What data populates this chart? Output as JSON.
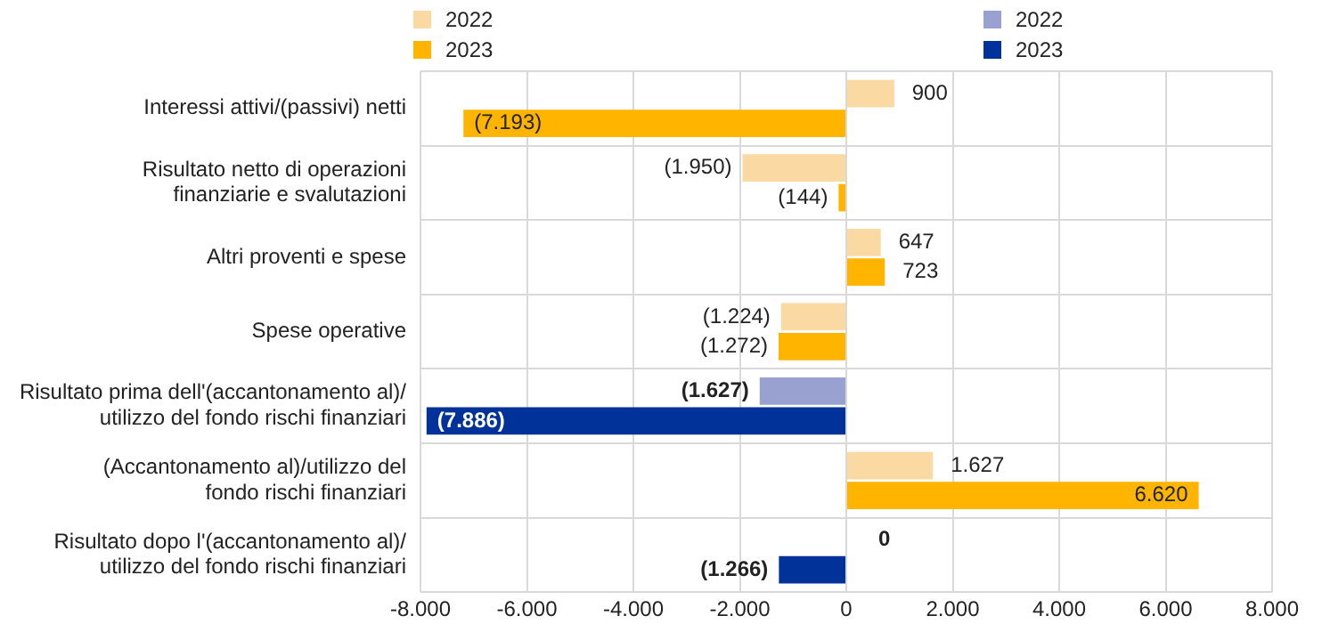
{
  "chart_data": {
    "type": "bar",
    "orientation": "horizontal",
    "legend": "top",
    "grid": true,
    "categories": [
      "Interessi attivi/(passivi) netti",
      "Risultato netto di operazioni\nfinanziarie e svalutazioni",
      "Altri proventi e spese",
      "Spese operative",
      "Risultato prima dell'(accantonamento al)/\nutilizzo del fondo rischi finanziari",
      "(Accantonamento al)/utilizzo del\nfondo rischi finanziari",
      "Risultato dopo l'(accantonamento al)/\nutilizzo del fondo rischi finanziari"
    ],
    "series": [
      {
        "name": "2022",
        "color": "#fbd9a3",
        "values": [
          900,
          -1950,
          647,
          -1224,
          null,
          1627,
          null
        ],
        "value_labels": [
          "900",
          "(1.950)",
          "647",
          "(1.224)",
          null,
          "1.627",
          null
        ]
      },
      {
        "name": "2023",
        "color": "#ffb400",
        "values": [
          -7193,
          -144,
          723,
          -1272,
          null,
          6620,
          null
        ],
        "value_labels": [
          "(7.193)",
          "(144)",
          "723",
          "(1.272)",
          null,
          "6.620",
          null
        ]
      },
      {
        "name": "2022",
        "color": "#98a1d0",
        "values": [
          null,
          null,
          null,
          null,
          -1627,
          null,
          0
        ],
        "value_labels": [
          null,
          null,
          null,
          null,
          "(1.627)",
          null,
          "0"
        ]
      },
      {
        "name": "2023",
        "color": "#003299",
        "values": [
          null,
          null,
          null,
          null,
          -7886,
          null,
          -1266
        ],
        "value_labels": [
          null,
          null,
          null,
          null,
          "(7.886)",
          null,
          "(1.266)"
        ]
      }
    ],
    "xlim": [
      -8000,
      8000
    ],
    "xticks": [
      {
        "value": -8000,
        "label": "-8.000"
      },
      {
        "value": -6000,
        "label": "-6.000"
      },
      {
        "value": -4000,
        "label": "-4.000"
      },
      {
        "value": -2000,
        "label": "-2.000"
      },
      0,
      {
        "value": 2000,
        "label": "2.000"
      },
      {
        "value": 4000,
        "label": "4.000"
      },
      {
        "value": 6000,
        "label": "6.000"
      },
      {
        "value": 8000,
        "label": "8.000"
      }
    ]
  }
}
